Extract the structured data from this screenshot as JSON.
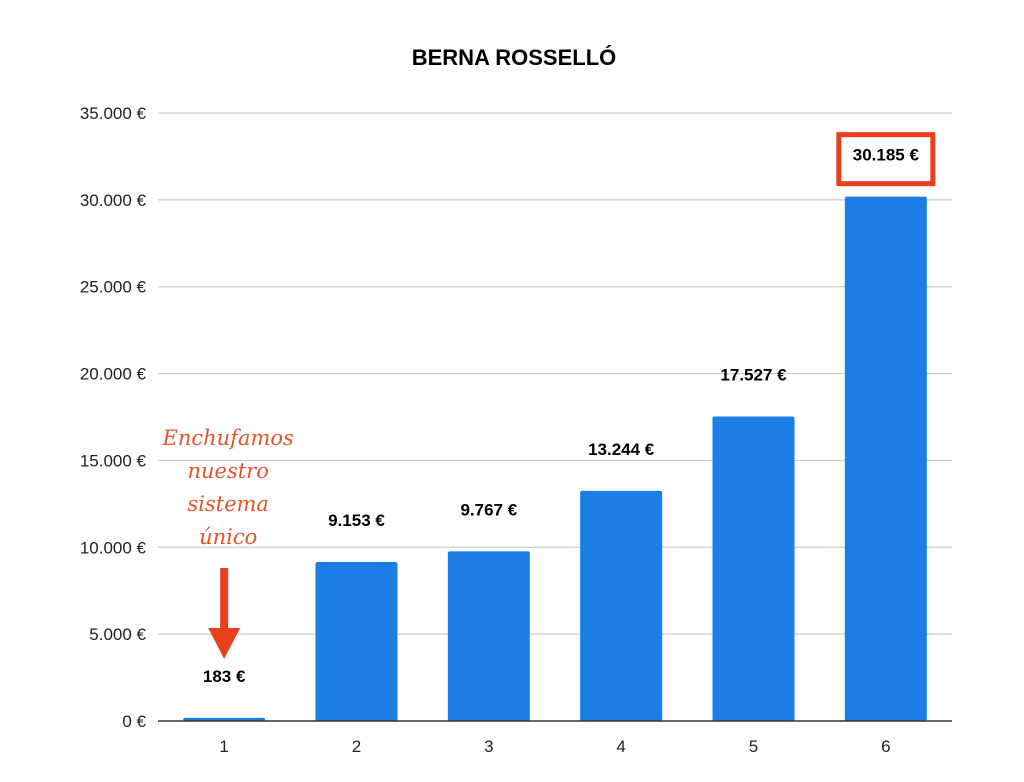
{
  "chart_data": {
    "type": "bar",
    "title": "BERNA ROSSELLÓ",
    "categories": [
      "1",
      "2",
      "3",
      "4",
      "5",
      "6"
    ],
    "values": [
      183,
      9153,
      9767,
      13244,
      17527,
      30185
    ],
    "data_labels": [
      "183 €",
      "9.153 €",
      "9.767 €",
      "13.244 €",
      "17.527 €",
      "30.185 €"
    ],
    "ylim": [
      0,
      35000
    ],
    "yticks": [
      0,
      5000,
      10000,
      15000,
      20000,
      25000,
      30000,
      35000
    ],
    "ytick_labels": [
      "0 €",
      "5.000 €",
      "10.000 €",
      "15.000 €",
      "20.000 €",
      "25.000 €",
      "30.000 €",
      "35.000 €"
    ],
    "grid": true,
    "bar_color": "#1a7ee6",
    "highlight": {
      "index": 5,
      "color": "#e8401c"
    },
    "annotation": {
      "lines": [
        "Enchufamos",
        "nuestro",
        "sistema",
        "único"
      ],
      "color": "#e2542a",
      "arrow_color": "#e8401c",
      "target_index": 0
    }
  }
}
